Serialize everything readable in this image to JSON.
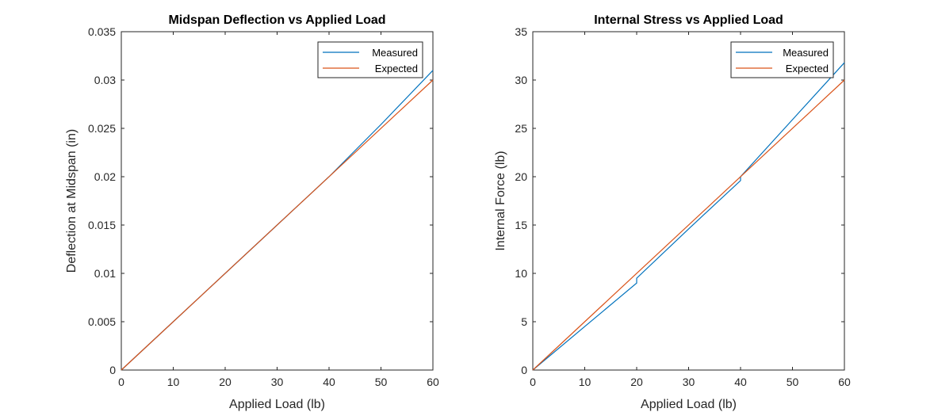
{
  "chart_data": [
    {
      "type": "line",
      "title": "Midspan Deflection vs Applied Load",
      "xlabel": "Applied Load (lb)",
      "ylabel": "Deflection at Midspan (in)",
      "xlim": [
        0,
        60
      ],
      "ylim": [
        0,
        0.035
      ],
      "xticks": [
        0,
        10,
        20,
        30,
        40,
        50,
        60
      ],
      "yticks": [
        0,
        0.005,
        0.01,
        0.015,
        0.02,
        0.025,
        0.03,
        0.035
      ],
      "xtick_labels": [
        "0",
        "10",
        "20",
        "30",
        "40",
        "50",
        "60"
      ],
      "ytick_labels": [
        "0",
        "0.005",
        "0.01",
        "0.015",
        "0.02",
        "0.025",
        "0.03",
        "0.035"
      ],
      "grid": false,
      "legend": "top-right",
      "series": [
        {
          "name": "Measured",
          "color": "#0072BD",
          "points": [
            [
              0,
              0
            ],
            [
              10,
              0.005
            ],
            [
              20,
              0.01
            ],
            [
              30,
              0.015
            ],
            [
              40,
              0.02
            ],
            [
              50,
              0.0254
            ],
            [
              60,
              0.031
            ]
          ]
        },
        {
          "name": "Expected",
          "color": "#D95319",
          "points": [
            [
              0,
              0
            ],
            [
              60,
              0.03
            ]
          ]
        }
      ]
    },
    {
      "type": "line",
      "title": "Internal Stress vs Applied Load",
      "xlabel": "Applied Load (lb)",
      "ylabel": "Internal Force (lb)",
      "xlim": [
        0,
        60
      ],
      "ylim": [
        0,
        35
      ],
      "xticks": [
        0,
        10,
        20,
        30,
        40,
        50,
        60
      ],
      "yticks": [
        0,
        5,
        10,
        15,
        20,
        25,
        30,
        35
      ],
      "xtick_labels": [
        "0",
        "10",
        "20",
        "30",
        "40",
        "50",
        "60"
      ],
      "ytick_labels": [
        "0",
        "5",
        "10",
        "15",
        "20",
        "25",
        "30",
        "35"
      ],
      "grid": false,
      "legend": "top-right",
      "series": [
        {
          "name": "Measured",
          "color": "#0072BD",
          "points": [
            [
              0,
              0
            ],
            [
              10,
              4.5
            ],
            [
              20,
              9.0
            ],
            [
              20,
              9.5
            ],
            [
              30,
              14.6
            ],
            [
              40,
              19.6
            ],
            [
              40,
              20.0
            ],
            [
              50,
              25.9
            ],
            [
              60,
              31.8
            ]
          ]
        },
        {
          "name": "Expected",
          "color": "#D95319",
          "points": [
            [
              0,
              0
            ],
            [
              60,
              30
            ]
          ]
        }
      ]
    }
  ]
}
